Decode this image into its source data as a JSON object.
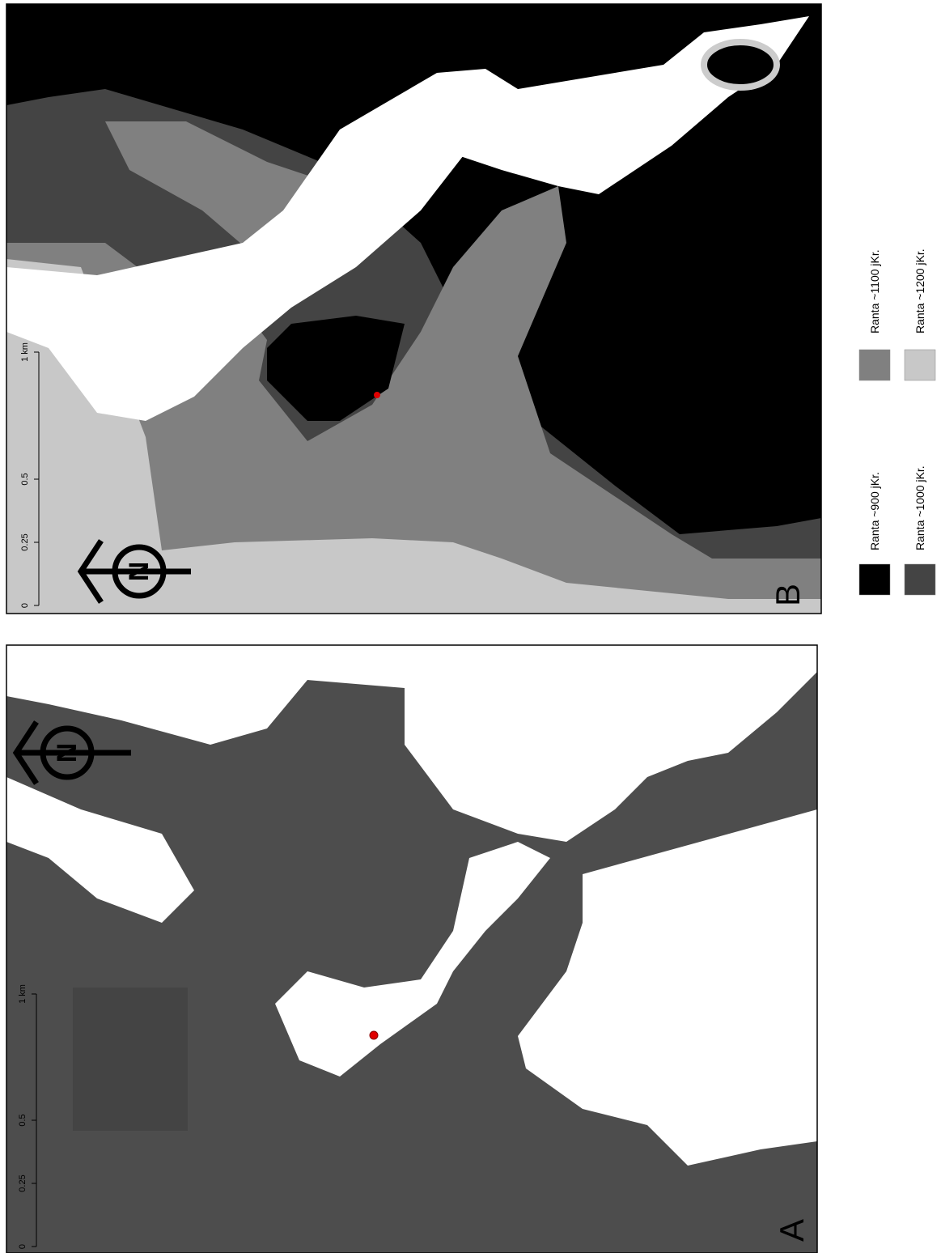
{
  "panels": [
    {
      "label": "B",
      "north": "N",
      "scale_labels": [
        "0",
        "0.25",
        "0.5",
        "1 km"
      ]
    },
    {
      "label": "A",
      "north": "N",
      "scale_labels": [
        "0",
        "0.25",
        "0.5",
        "1 km"
      ]
    }
  ],
  "legend": {
    "items": [
      {
        "label": "Ranta ~900 jKr.",
        "color": "#000000"
      },
      {
        "label": "Ranta ~1000 jKr.",
        "color": "#444444"
      },
      {
        "label": "Ranta ~1100 jKr.",
        "color": "#808080"
      },
      {
        "label": "Ranta ~1200 jKr.",
        "color": "#c8c8c8"
      }
    ]
  }
}
